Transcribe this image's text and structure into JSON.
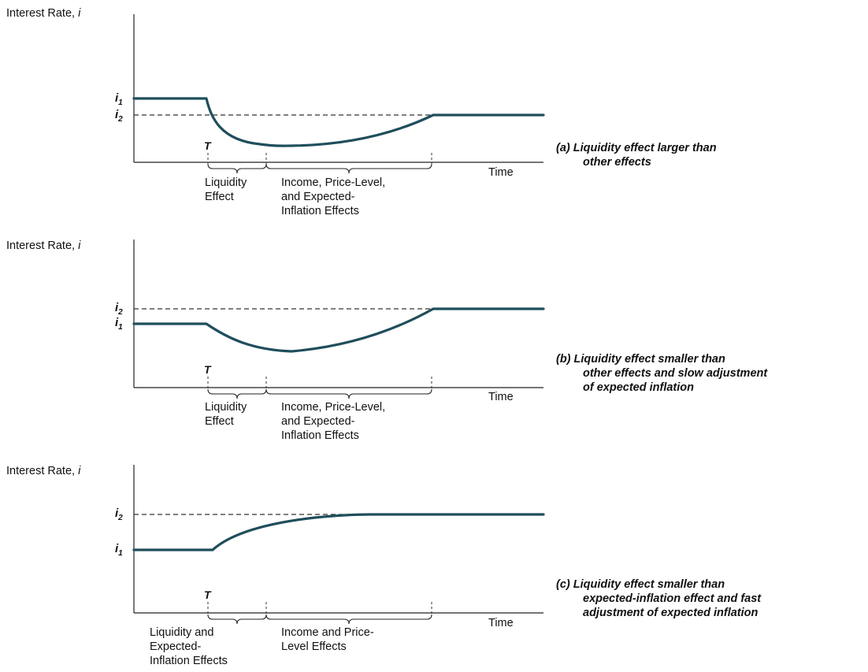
{
  "panels": [
    {
      "y_label": "Interest Rate, ",
      "y_var": "i",
      "i1": "i",
      "i1_sub": "1",
      "i2": "i",
      "i2_sub": "2",
      "t_label": "T",
      "x_label": "Time",
      "brace_left_lines": [
        "Liquidity",
        "Effect"
      ],
      "brace_right_lines": [
        "Income, Price-Level,",
        "and Expected-",
        "Inflation Effects"
      ],
      "caption_tag": "(a)",
      "caption_lines": [
        "Liquidity effect larger than",
        "other effects"
      ]
    },
    {
      "y_label": "Interest Rate, ",
      "y_var": "i",
      "i1": "i",
      "i1_sub": "1",
      "i2": "i",
      "i2_sub": "2",
      "t_label": "T",
      "x_label": "Time",
      "brace_left_lines": [
        "Liquidity",
        "Effect"
      ],
      "brace_right_lines": [
        "Income, Price-Level,",
        "and Expected-",
        "Inflation Effects"
      ],
      "caption_tag": "(b)",
      "caption_lines": [
        "Liquidity effect smaller than",
        "other effects and slow adjustment",
        "of expected inflation"
      ]
    },
    {
      "y_label": "Interest Rate, ",
      "y_var": "i",
      "i1": "i",
      "i1_sub": "1",
      "i2": "i",
      "i2_sub": "2",
      "t_label": "T",
      "x_label": "Time",
      "brace_left_lines": [
        "Liquidity and",
        "Expected-",
        "Inflation Effects"
      ],
      "brace_right_lines": [
        "Income and Price-",
        "Level Effects"
      ],
      "caption_tag": "(c)",
      "caption_lines": [
        "Liquidity effect smaller than",
        "expected-inflation effect and fast",
        "adjustment of expected inflation"
      ]
    }
  ],
  "colors": {
    "curve": "#1f4e5c",
    "axis": "#222222"
  }
}
